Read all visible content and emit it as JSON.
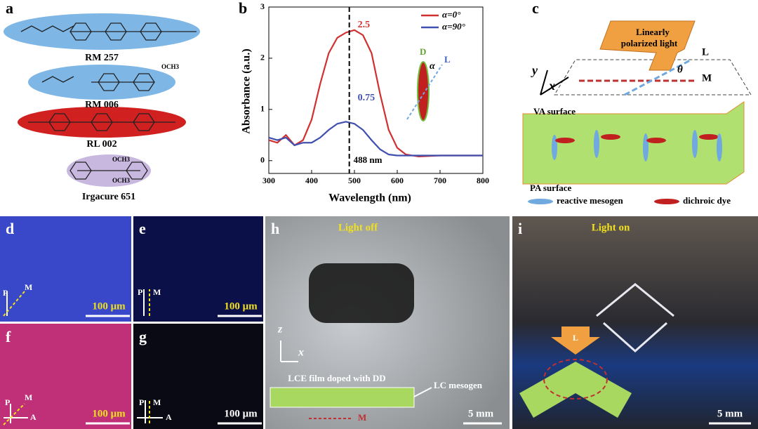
{
  "chart_data": {
    "type": "line",
    "xlabel": "Wavelength (nm)",
    "ylabel": "Absorbance (a.u.)",
    "x": [
      300,
      320,
      340,
      360,
      380,
      400,
      420,
      440,
      460,
      480,
      500,
      520,
      540,
      560,
      580,
      600,
      620,
      650,
      700,
      750,
      800
    ],
    "series": [
      {
        "name": "α=0°",
        "color": "#d03030",
        "values": [
          0.4,
          0.35,
          0.5,
          0.3,
          0.4,
          0.8,
          1.5,
          2.1,
          2.4,
          2.5,
          2.55,
          2.45,
          2.1,
          1.3,
          0.6,
          0.25,
          0.12,
          0.08,
          0.1,
          0.1,
          0.1
        ]
      },
      {
        "name": "α=90°",
        "color": "#4050b0",
        "values": [
          0.45,
          0.4,
          0.45,
          0.3,
          0.35,
          0.35,
          0.45,
          0.6,
          0.72,
          0.76,
          0.72,
          0.6,
          0.4,
          0.22,
          0.12,
          0.1,
          0.1,
          0.1,
          0.1,
          0.1,
          0.1
        ]
      }
    ],
    "xlim": [
      300,
      800
    ],
    "ylim": [
      -0.25,
      3
    ],
    "xticks": [
      300,
      400,
      500,
      600,
      700,
      800
    ],
    "yticks": [
      0,
      1,
      2,
      3
    ],
    "vline": 488,
    "vline_label": "488 nm",
    "peak_labels": [
      "2.5",
      "0.75"
    ],
    "inset_labels": [
      "D",
      "α",
      "L"
    ],
    "legend": "upper right"
  },
  "panels": {
    "a": {
      "label": "a",
      "molecules": [
        "RM 257",
        "RM 006",
        "RL 002",
        "Irgacure 651"
      ],
      "groups": [
        "OCH3",
        "OCH3",
        "OCH3"
      ]
    },
    "b": {
      "label": "b"
    },
    "c": {
      "label": "c",
      "light": [
        "Linearly",
        "polarized light"
      ],
      "L": "L",
      "theta": "θ",
      "M": "M",
      "y": "y",
      "x": "x",
      "top": "VA surface",
      "bottom": "PA surface",
      "legend": [
        "reactive mesogen",
        "dichroic dye"
      ]
    },
    "d": {
      "label": "d",
      "axes": [
        "P",
        "M"
      ],
      "scale": "100 μm"
    },
    "e": {
      "label": "e",
      "axes": [
        "P",
        "M"
      ],
      "scale": "100 μm"
    },
    "f": {
      "label": "f",
      "axes": [
        "P",
        "M",
        "A"
      ],
      "scale": "100 μm"
    },
    "g": {
      "label": "g",
      "axes": [
        "P",
        "M",
        "A"
      ],
      "scale": "100 μm"
    },
    "h": {
      "label": "h",
      "title": "Light off",
      "z": "z",
      "x": "x",
      "film": "LCE film doped with DD",
      "mesogen": "LC mesogen",
      "M": "M",
      "scale": "5 mm"
    },
    "i": {
      "label": "i",
      "title": "Light on",
      "L": "L",
      "scale": "5 mm"
    }
  }
}
